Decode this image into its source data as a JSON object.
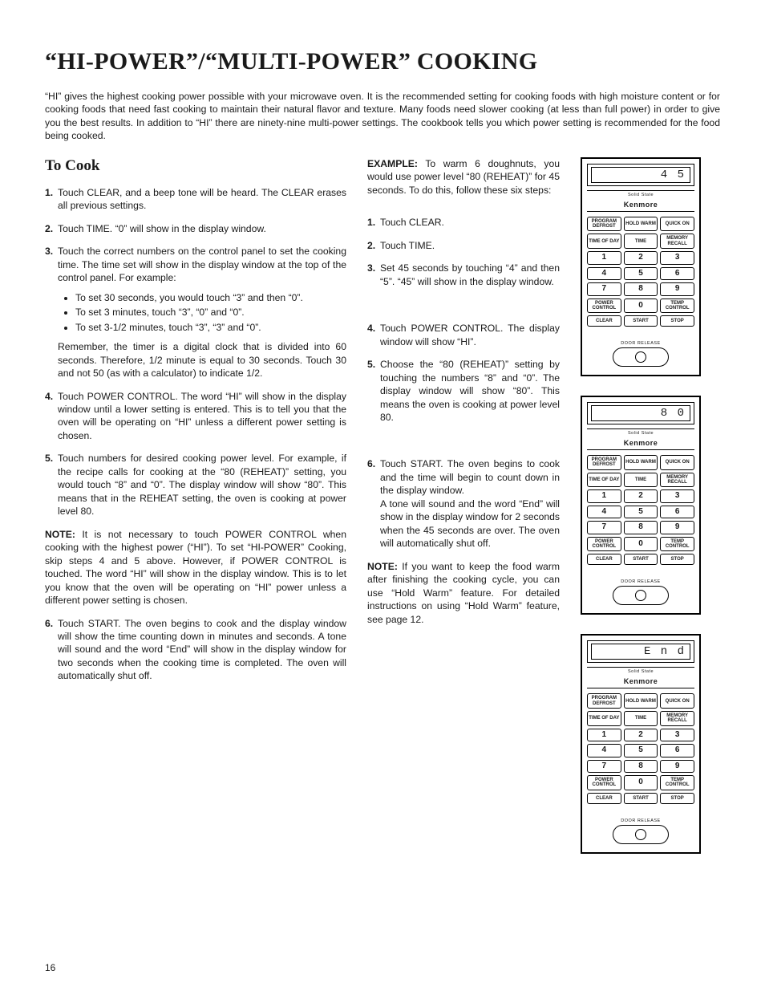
{
  "title": "“HI-POWER”/“MULTI-POWER” COOKING",
  "intro": "“HI” gives the highest cooking power possible with your microwave oven. It is the recommended setting for cooking foods with high moisture content or for cooking foods that need fast cooking to maintain their natural flavor and texture. Many foods need slower cooking (at less than full power) in order to give you the best results. In addition to “HI” there are ninety-nine multi-power settings. The cookbook tells you which power setting is recommended for the food being cooked.",
  "to_cook_heading": "To Cook",
  "left_steps": {
    "s1": "Touch CLEAR, and a beep tone will be heard. The CLEAR erases all previous settings.",
    "s2": "Touch TIME. “0” will show in the display window.",
    "s3_lead": "Touch the correct numbers on the control panel to set the cooking time. The time set will show in the display window at the top of the control panel. For example:",
    "s3_b1": "To set 30 seconds, you would touch “3” and then “0”.",
    "s3_b2": "To set 3 minutes, touch “3”, “0” and “0”.",
    "s3_b3": "To set 3-1/2 minutes, touch “3”, “3” and “0”.",
    "s3_tail": "Remember, the timer is a digital clock that is divided into 60 seconds. Therefore, 1/2 minute is equal to 30 seconds. Touch 30 and not 50 (as with a calculator) to indicate 1/2.",
    "s4": "Touch POWER CONTROL. The word “HI” will show in the display window until a lower setting is entered. This is to tell you that the oven will be operating on “HI” unless a different power setting is chosen.",
    "s5": "Touch numbers for desired cooking power level. For example, if the recipe calls for cooking at the “80 (REHEAT)” setting, you would touch “8” and “0”. The display window will show “80”. This means that in the REHEAT setting, the oven is cooking at power level 80.",
    "s6": "Touch START. The oven begins to cook and the display window will show the time counting down in minutes and seconds. A tone will sound and the word “End” will show in the display window for two seconds when the cooking time is completed. The oven will automatically shut off."
  },
  "left_note": "It is not necessary to touch POWER CONTROL when cooking with the highest power (“HI”). To set “HI-POWER” Cooking, skip steps 4 and 5 above. However, if POWER CONTROL is touched. The word “HI” will show in the display window. This is to let you know that the oven will be operating on “HI” power unless a different power setting is chosen.",
  "note_label": "NOTE:",
  "example_label": "EXAMPLE:",
  "example_lead": "To warm 6 doughnuts, you would use power level “80 (REHEAT)” for 45 seconds. To do this, follow these six steps:",
  "mid_steps": {
    "s1": "Touch CLEAR.",
    "s2": "Touch TIME.",
    "s3": "Set 45 seconds by touching “4” and then “5”. “45” will show in the display window.",
    "s4": "Touch POWER CONTROL. The display window will show “HI”.",
    "s5": "Choose the “80 (REHEAT)” setting by touching the numbers “8” and “0”. The display window will show “80”. This means the oven is cooking at power level 80.",
    "s6": "Touch START. The oven begins to cook and the time will begin to count down in the display window.",
    "s6_tail": "A tone will sound and the word “End” will show in the display window for 2 seconds when the 45 seconds are over. The oven will automatically shut off."
  },
  "mid_note": "If you want to keep the food warm after finishing the cooking cycle, you can use “Hold Warm” feature. For detailed instructions on using “Hold Warm” feature, see page 12.",
  "panels": {
    "brand": "Kenmore",
    "solid_state": "Solid State",
    "door_release": "DOOR RELEASE",
    "display1": "4 5",
    "display2": "8 0",
    "display3": "E n  d",
    "keys": {
      "r1c1": "PROGRAM DEFROST",
      "r1c2": "HOLD WARM",
      "r1c3": "QUICK ON",
      "r2c1": "TIME OF DAY",
      "r2c2": "TIME",
      "r2c3": "MEMORY RECALL",
      "n1": "1",
      "n2": "2",
      "n3": "3",
      "n4": "4",
      "n5": "5",
      "n6": "6",
      "n7": "7",
      "n8": "8",
      "n9": "9",
      "r6c1": "POWER CONTROL",
      "n0": "0",
      "r6c3": "TEMP CONTROL",
      "r7c1": "CLEAR",
      "r7c2": "START",
      "r7c3": "STOP"
    }
  },
  "page_number": "16"
}
